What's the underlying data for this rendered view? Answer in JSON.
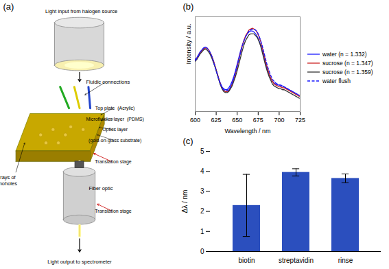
{
  "chart_data": [
    {
      "type": "diagram",
      "title": "(a)",
      "annotations": [
        "Light input from halogen source",
        "Fluidic connections",
        "Top plate  (Acrylic)",
        "Microfluidics layer  (PDMS)",
        "Optics layer",
        "(gold-on-glass substrate)",
        "Translation stage",
        "Arrays of\nnanoholes",
        "Fiber optic",
        "Translation stage",
        "Light output to spectrometer"
      ]
    },
    {
      "type": "line",
      "title": "(b)",
      "xlabel": "Wavelength / nm",
      "ylabel": "Intensity / a.u.",
      "x": [
        600,
        602,
        604,
        606,
        608,
        610,
        612,
        614,
        616,
        618,
        620,
        622,
        624,
        626,
        628,
        630,
        632,
        634,
        636,
        638,
        640,
        642,
        644,
        646,
        648,
        650,
        652,
        654,
        656,
        658,
        660,
        662,
        664,
        666,
        668,
        670,
        672,
        674,
        676,
        678,
        680,
        682,
        684,
        686,
        688,
        690,
        692,
        694,
        696,
        698,
        700,
        702,
        704,
        706,
        708,
        710,
        712,
        714,
        716,
        718,
        720,
        722,
        724
      ],
      "series": [
        {
          "name": "water (n = 1.332)",
          "color": "#1a1aff",
          "line_style": "solid",
          "values": [
            0.55,
            0.57,
            0.6,
            0.63,
            0.65,
            0.67,
            0.68,
            0.67,
            0.65,
            0.62,
            0.58,
            0.53,
            0.47,
            0.41,
            0.35,
            0.3,
            0.26,
            0.24,
            0.23,
            0.23,
            0.25,
            0.28,
            0.32,
            0.37,
            0.43,
            0.5,
            0.57,
            0.64,
            0.7,
            0.75,
            0.79,
            0.82,
            0.84,
            0.85,
            0.85,
            0.84,
            0.82,
            0.79,
            0.75,
            0.7,
            0.64,
            0.57,
            0.5,
            0.44,
            0.39,
            0.35,
            0.32,
            0.3,
            0.29,
            0.28,
            0.28,
            0.27,
            0.27,
            0.26,
            0.25,
            0.24,
            0.23,
            0.22,
            0.21,
            0.2,
            0.19,
            0.18,
            0.17
          ]
        },
        {
          "name": "sucrose (n = 1.347)",
          "color": "#cc2222",
          "line_style": "solid",
          "values": [
            0.54,
            0.56,
            0.59,
            0.62,
            0.64,
            0.66,
            0.67,
            0.67,
            0.65,
            0.62,
            0.58,
            0.53,
            0.47,
            0.41,
            0.35,
            0.29,
            0.25,
            0.22,
            0.21,
            0.21,
            0.22,
            0.25,
            0.29,
            0.34,
            0.4,
            0.47,
            0.55,
            0.62,
            0.69,
            0.75,
            0.8,
            0.83,
            0.86,
            0.87,
            0.88,
            0.87,
            0.86,
            0.83,
            0.79,
            0.74,
            0.67,
            0.6,
            0.52,
            0.46,
            0.4,
            0.35,
            0.32,
            0.29,
            0.28,
            0.27,
            0.26,
            0.26,
            0.25,
            0.25,
            0.24,
            0.23,
            0.22,
            0.21,
            0.2,
            0.19,
            0.18,
            0.17,
            0.16
          ]
        },
        {
          "name": "sucrose (n = 1.359)",
          "color": "#333333",
          "line_style": "solid",
          "values": [
            0.53,
            0.55,
            0.58,
            0.61,
            0.63,
            0.65,
            0.66,
            0.65,
            0.63,
            0.6,
            0.56,
            0.51,
            0.46,
            0.4,
            0.34,
            0.28,
            0.24,
            0.21,
            0.2,
            0.2,
            0.21,
            0.24,
            0.27,
            0.32,
            0.37,
            0.43,
            0.5,
            0.57,
            0.64,
            0.7,
            0.75,
            0.78,
            0.81,
            0.82,
            0.82,
            0.82,
            0.8,
            0.78,
            0.74,
            0.69,
            0.62,
            0.55,
            0.48,
            0.42,
            0.37,
            0.33,
            0.29,
            0.27,
            0.26,
            0.25,
            0.24,
            0.24,
            0.23,
            0.23,
            0.22,
            0.21,
            0.2,
            0.19,
            0.18,
            0.17,
            0.16,
            0.15,
            0.14
          ]
        },
        {
          "name": "water flush",
          "color": "#1a1aff",
          "line_style": "dashed",
          "values": [
            0.54,
            0.56,
            0.59,
            0.63,
            0.65,
            0.67,
            0.68,
            0.67,
            0.65,
            0.62,
            0.58,
            0.52,
            0.46,
            0.4,
            0.34,
            0.29,
            0.25,
            0.23,
            0.22,
            0.22,
            0.23,
            0.26,
            0.3,
            0.35,
            0.41,
            0.48,
            0.55,
            0.62,
            0.69,
            0.74,
            0.79,
            0.82,
            0.85,
            0.86,
            0.87,
            0.87,
            0.86,
            0.84,
            0.8,
            0.75,
            0.69,
            0.62,
            0.55,
            0.48,
            0.43,
            0.38,
            0.34,
            0.32,
            0.3,
            0.29,
            0.28,
            0.28,
            0.27,
            0.26,
            0.25,
            0.24,
            0.23,
            0.22,
            0.21,
            0.2,
            0.19,
            0.18,
            0.17
          ]
        }
      ],
      "xlim": [
        600,
        725
      ],
      "xticks": [
        600,
        625,
        650,
        675,
        700,
        725
      ],
      "ylim": [
        0,
        1
      ],
      "tick_labels": "x",
      "legend": "right"
    },
    {
      "type": "bar",
      "title": "(c)",
      "ylabel": "Δλ / nm",
      "categories": [
        "biotin",
        "streptavidin",
        "rinse"
      ],
      "values": [
        2.3,
        3.95,
        3.65
      ],
      "errors": [
        1.55,
        0.18,
        0.22
      ],
      "color": "#2b4fbe",
      "ylim": [
        0,
        5
      ],
      "yticks": [
        0,
        1,
        2,
        3,
        4,
        5
      ]
    }
  ]
}
